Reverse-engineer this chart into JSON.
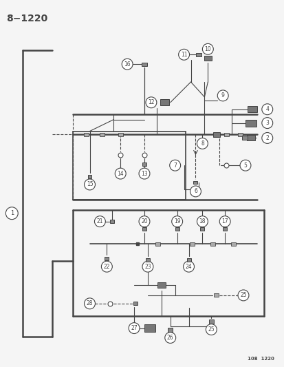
{
  "title": "8−1220",
  "footer": "108  1220",
  "bg_color": "#f5f5f5",
  "line_color": "#444444",
  "figsize": [
    4.14,
    5.33
  ],
  "dpi": 100
}
